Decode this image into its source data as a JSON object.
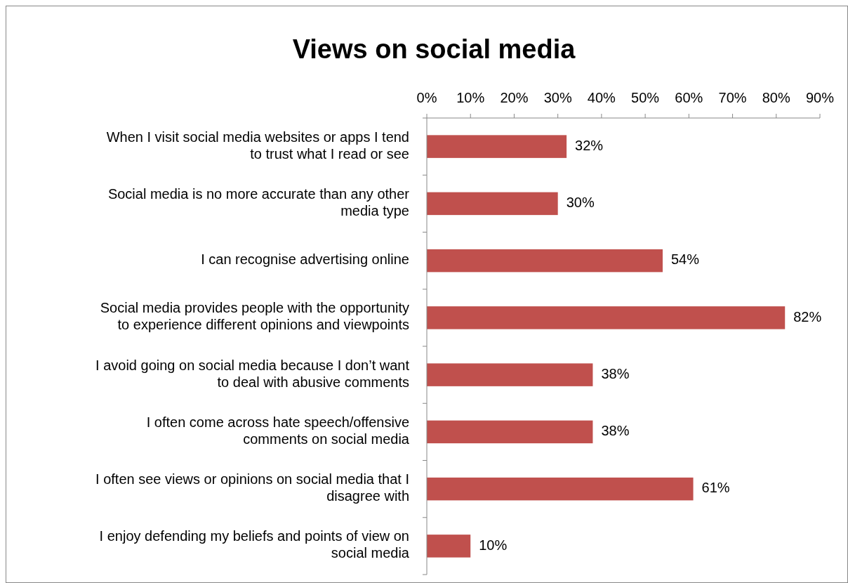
{
  "chart_data": {
    "type": "bar",
    "orientation": "horizontal",
    "title": "Views on social media",
    "categories": [
      "When I visit social media websites or apps I tend\nto trust what I read or see",
      "Social media is no more accurate than any other\nmedia type",
      "I can recognise advertising online",
      "Social media provides people with the opportunity\nto experience different opinions and viewpoints",
      "I avoid going on social media because I don’t want\nto deal with abusive comments",
      "I often come across hate speech/offensive\ncomments on social media",
      "I often see views or opinions on social media that I\ndisagree with",
      "I enjoy defending my beliefs and points of view on\nsocial media"
    ],
    "values": [
      32,
      30,
      54,
      82,
      38,
      38,
      61,
      10
    ],
    "value_labels": [
      "32%",
      "30%",
      "54%",
      "82%",
      "38%",
      "38%",
      "61%",
      "10%"
    ],
    "color": "#c0504d",
    "xlim": [
      0,
      90
    ],
    "xticks": [
      {
        "value": 0,
        "label": "0%"
      },
      {
        "value": 10,
        "label": "10%"
      },
      {
        "value": 20,
        "label": "20%"
      },
      {
        "value": 30,
        "label": "30%"
      },
      {
        "value": 40,
        "label": "40%"
      },
      {
        "value": 50,
        "label": "50%"
      },
      {
        "value": 60,
        "label": "60%"
      },
      {
        "value": 70,
        "label": "70%"
      },
      {
        "value": 80,
        "label": "80%"
      },
      {
        "value": 90,
        "label": "90%"
      }
    ],
    "grid": false
  }
}
